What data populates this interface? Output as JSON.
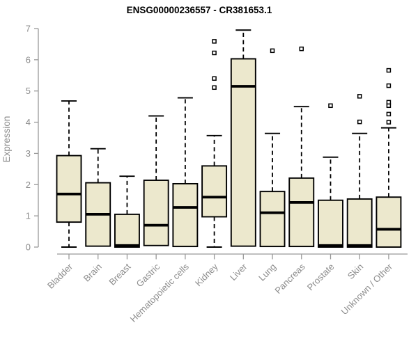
{
  "header": {
    "title": "ENSG00000236557 - CR381653.1"
  },
  "chart_data": {
    "type": "boxplot",
    "title": "ENSG00000236557 - CR381653.1",
    "xlabel": "",
    "ylabel": "Expression",
    "ylim": [
      0,
      7
    ],
    "yticks": [
      0,
      1,
      2,
      3,
      4,
      5,
      6,
      7
    ],
    "grid": false,
    "legend": "none",
    "colors": {
      "box_fill": "#ece8cd",
      "box_stroke": "#000000",
      "median": "#000000",
      "axis_line": "#999999",
      "axis_text": "#8c8c8c",
      "title_text": "#000000",
      "outlier_fill": "#ffffff"
    },
    "categories": [
      "Bladder",
      "Brain",
      "Breast",
      "Gastric",
      "Hematopoietic cells",
      "Kidney",
      "Liver",
      "Lung",
      "Pancreas",
      "Prostate",
      "Skin",
      "Unknown / Other"
    ],
    "series": [
      {
        "name": "Bladder",
        "low": 0.0,
        "q1": 0.8,
        "median": 1.7,
        "q3": 2.93,
        "high": 4.68,
        "outliers": []
      },
      {
        "name": "Brain",
        "low": 0.03,
        "q1": 0.03,
        "median": 1.05,
        "q3": 2.06,
        "high": 3.15,
        "outliers": []
      },
      {
        "name": "Breast",
        "low": 0.0,
        "q1": 0.0,
        "median": 0.05,
        "q3": 1.05,
        "high": 2.27,
        "outliers": []
      },
      {
        "name": "Gastric",
        "low": 0.05,
        "q1": 0.05,
        "median": 0.7,
        "q3": 2.14,
        "high": 4.2,
        "outliers": []
      },
      {
        "name": "Hematopoietic cells",
        "low": 0.02,
        "q1": 0.02,
        "median": 1.27,
        "q3": 2.03,
        "high": 4.78,
        "outliers": []
      },
      {
        "name": "Kidney",
        "low": 0.0,
        "q1": 0.97,
        "median": 1.6,
        "q3": 2.6,
        "high": 3.57,
        "outliers": [
          5.11,
          5.4,
          6.22,
          6.59
        ]
      },
      {
        "name": "Liver",
        "low": 0.03,
        "q1": 0.03,
        "median": 5.15,
        "q3": 6.03,
        "high": 6.95,
        "outliers": []
      },
      {
        "name": "Lung",
        "low": 0.02,
        "q1": 0.02,
        "median": 1.1,
        "q3": 1.78,
        "high": 3.64,
        "outliers": [
          6.29
        ]
      },
      {
        "name": "Pancreas",
        "low": 0.02,
        "q1": 0.02,
        "median": 1.43,
        "q3": 2.21,
        "high": 4.5,
        "outliers": [
          6.35
        ]
      },
      {
        "name": "Prostate",
        "low": 0.0,
        "q1": 0.0,
        "median": 0.05,
        "q3": 1.5,
        "high": 2.88,
        "outliers": [
          4.53
        ]
      },
      {
        "name": "Skin",
        "low": 0.0,
        "q1": 0.0,
        "median": 0.05,
        "q3": 1.54,
        "high": 3.64,
        "outliers": [
          4.01,
          4.83
        ]
      },
      {
        "name": "Unknown / Other",
        "low": 0.0,
        "q1": 0.0,
        "median": 0.57,
        "q3": 1.6,
        "high": 3.82,
        "outliers": [
          4.0,
          4.26,
          4.53,
          4.64,
          5.17,
          5.66
        ]
      }
    ]
  }
}
